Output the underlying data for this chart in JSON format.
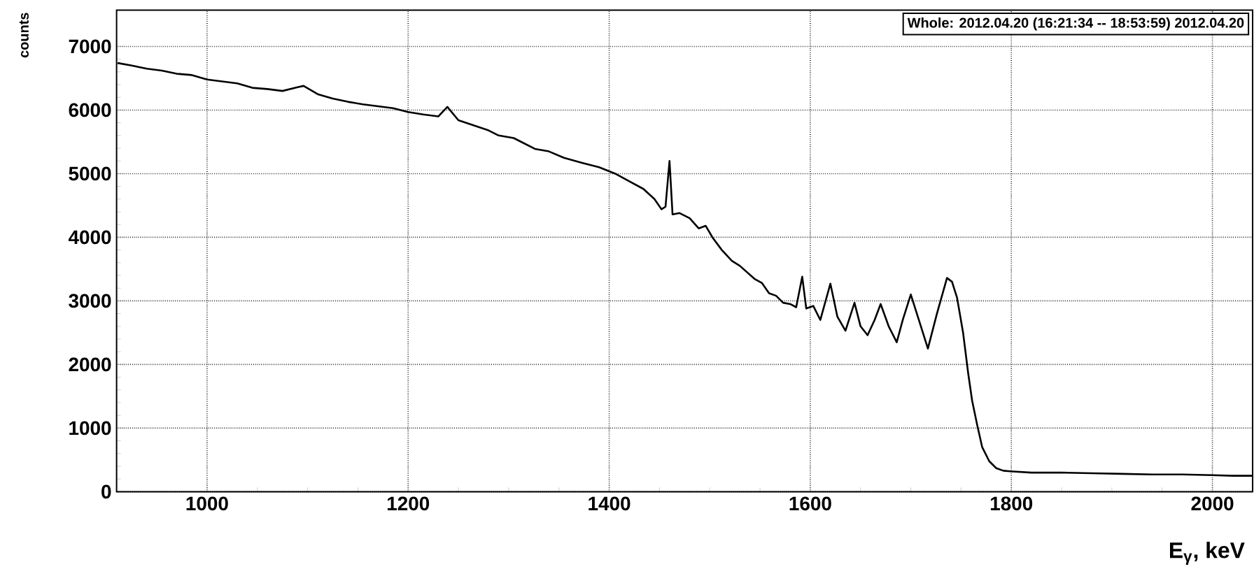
{
  "chart_data": {
    "type": "line",
    "title": "Whole: 2012.04.20 (16:21:34 -- 18:53:59) 2012.04.20",
    "xlabel": "E$_{γ}$, keV",
    "ylabel": "counts",
    "xlim": [
      910,
      2040
    ],
    "ylim": [
      0,
      7570
    ],
    "xticks": [
      1000,
      1200,
      1400,
      1600,
      1800,
      2000
    ],
    "yticks": [
      0,
      1000,
      2000,
      3000,
      4000,
      5000,
      6000,
      7000
    ],
    "grid": true,
    "line_style": "solid",
    "marker": "none",
    "series": [
      {
        "color": "#000000",
        "x": [
          911,
          925,
          940,
          955,
          970,
          985,
          1000,
          1015,
          1030,
          1045,
          1060,
          1075,
          1090,
          1096,
          1110,
          1125,
          1140,
          1155,
          1170,
          1185,
          1200,
          1215,
          1230,
          1239,
          1250,
          1265,
          1280,
          1290,
          1305,
          1326,
          1340,
          1355,
          1373,
          1390,
          1406,
          1420,
          1434,
          1445,
          1452,
          1456,
          1460,
          1463,
          1470,
          1480,
          1489,
          1496,
          1503,
          1512,
          1522,
          1530,
          1545,
          1552,
          1559,
          1566,
          1573,
          1580,
          1586,
          1592,
          1596,
          1603,
          1610,
          1620,
          1627,
          1635,
          1644,
          1650,
          1657,
          1664,
          1670,
          1678,
          1686,
          1692,
          1700,
          1708,
          1717,
          1726,
          1736,
          1741,
          1746,
          1752,
          1757,
          1761,
          1766,
          1771,
          1778,
          1785,
          1792,
          1799,
          1820,
          1850,
          1880,
          1910,
          1940,
          1970,
          2000,
          2020,
          2040
        ],
        "values": [
          6740,
          6700,
          6650,
          6620,
          6570,
          6550,
          6480,
          6450,
          6420,
          6350,
          6330,
          6300,
          6360,
          6380,
          6250,
          6180,
          6130,
          6090,
          6060,
          6030,
          5970,
          5930,
          5900,
          6050,
          5840,
          5760,
          5680,
          5600,
          5560,
          5390,
          5350,
          5250,
          5170,
          5100,
          5000,
          4880,
          4760,
          4600,
          4440,
          4480,
          5200,
          4360,
          4380,
          4300,
          4140,
          4180,
          3990,
          3800,
          3630,
          3550,
          3340,
          3280,
          3120,
          3080,
          2970,
          2950,
          2900,
          3380,
          2880,
          2920,
          2700,
          3270,
          2750,
          2530,
          2970,
          2600,
          2460,
          2700,
          2950,
          2600,
          2350,
          2700,
          3100,
          2700,
          2250,
          2800,
          3360,
          3300,
          3050,
          2500,
          1870,
          1430,
          1050,
          700,
          480,
          370,
          330,
          320,
          300,
          300,
          290,
          280,
          270,
          270,
          260,
          250,
          250
        ]
      }
    ]
  }
}
